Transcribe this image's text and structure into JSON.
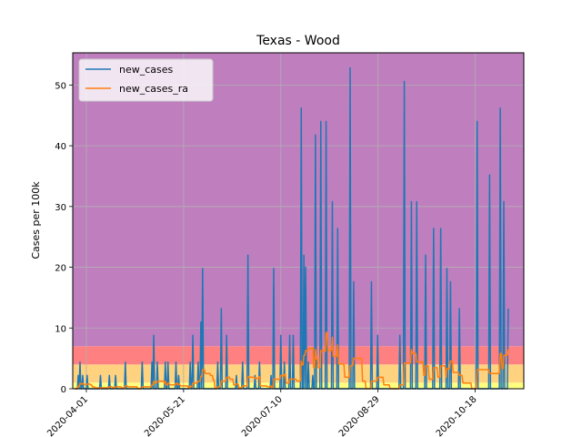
{
  "chart_data": {
    "type": "line",
    "title": "Texas - Wood",
    "xlabel": "",
    "ylabel": "Cases per 100k",
    "x_start": "2020-03-26",
    "x_end": "2020-11-04",
    "xlim": [
      "2020-03-25",
      "2020-11-12"
    ],
    "ylim": [
      0,
      55.3
    ],
    "x_ticks": [
      "2020-04-01",
      "2020-05-21",
      "2020-07-10",
      "2020-08-29",
      "2020-10-18"
    ],
    "y_ticks": [
      0,
      10,
      20,
      30,
      40,
      50
    ],
    "grid": true,
    "legend_position": "top-left",
    "bands": [
      {
        "from": 0,
        "to": 1,
        "color": "#ffff7f"
      },
      {
        "from": 1,
        "to": 4,
        "color": "#ffd280"
      },
      {
        "from": 4,
        "to": 7,
        "color": "#ff8080"
      },
      {
        "from": 7,
        "to": 55.3,
        "color": "#bf7fbf"
      }
    ],
    "series": [
      {
        "name": "new_cases",
        "color": "#1f77b4",
        "values": [
          0,
          0,
          0,
          0,
          2.2,
          0,
          4.4,
          0,
          0,
          2.2,
          0,
          0,
          0,
          0,
          2.2,
          0,
          0,
          0,
          0,
          0,
          0,
          0,
          0,
          0,
          0,
          0,
          0,
          0,
          0,
          2.2,
          0,
          0,
          0,
          0,
          0,
          0,
          0,
          0,
          0,
          2.2,
          0,
          0,
          0,
          0,
          0,
          0,
          2.2,
          0,
          0,
          0,
          0,
          0,
          0,
          0,
          0,
          0,
          0,
          4.4,
          0,
          0,
          0,
          0,
          0,
          0,
          0,
          0,
          0,
          0,
          0,
          0,
          0,
          0,
          0,
          0,
          0,
          0,
          4.4,
          0,
          0,
          0,
          0,
          0,
          0,
          0,
          0,
          0,
          0,
          4.4,
          0,
          8.8,
          0,
          0,
          0,
          4.4,
          0,
          0,
          0,
          0,
          0,
          0,
          0,
          0,
          4.4,
          0,
          0,
          4.4,
          0,
          0,
          0,
          0,
          0,
          0,
          0,
          0,
          4.4,
          0,
          0,
          2.2,
          0,
          0,
          0,
          0,
          0,
          0,
          0,
          0,
          0,
          0,
          0,
          0,
          4.4,
          0,
          0,
          8.8,
          0,
          0,
          0,
          0,
          0,
          4.4,
          0,
          0,
          11,
          0,
          19.8,
          0,
          0,
          0,
          0,
          0,
          0,
          0,
          0,
          0,
          0,
          0,
          0,
          0,
          0,
          0,
          0,
          4.4,
          0,
          0,
          0,
          13.2,
          0,
          0,
          0,
          0,
          0,
          8.8,
          0,
          0,
          0,
          0,
          0,
          0,
          0,
          0,
          0,
          0,
          2.2,
          0,
          0,
          0,
          0,
          0,
          0,
          4.4,
          0,
          0,
          0,
          0,
          0,
          22,
          0,
          0,
          0,
          0,
          0,
          0,
          0,
          2.2,
          0,
          0,
          0,
          0,
          4.4,
          0,
          0,
          0,
          0,
          0,
          0,
          0,
          0,
          0,
          0,
          0,
          0,
          2.2,
          0,
          0,
          19.8,
          0,
          0,
          0,
          0,
          0,
          0,
          0,
          8.8,
          0,
          0,
          0,
          4.4,
          0,
          0,
          0,
          0,
          0,
          8.8,
          0,
          0,
          0,
          8.8,
          0,
          0,
          0,
          0,
          0,
          0,
          0,
          0,
          46.2,
          0,
          0,
          22,
          0,
          20,
          0,
          0,
          4.4,
          0,
          0,
          0,
          0,
          2.2,
          0,
          0,
          41.8,
          0,
          0,
          0,
          0,
          0,
          44,
          0,
          0,
          0,
          0,
          0,
          44,
          0,
          0,
          0,
          0,
          0,
          0,
          30.8,
          0,
          0,
          0,
          0,
          0,
          26.4,
          0,
          0,
          0,
          0,
          0,
          0,
          0,
          0,
          0,
          0,
          0,
          0,
          0,
          52.8,
          0,
          0,
          0,
          17.6,
          0,
          0,
          0,
          0,
          0,
          0,
          0,
          0,
          0,
          0,
          0,
          0,
          0,
          0,
          0,
          0,
          0,
          0,
          0,
          17.6,
          0,
          0,
          0,
          0,
          0,
          0,
          8.8,
          0,
          0,
          0,
          0,
          0,
          0,
          0,
          0,
          0,
          0,
          0,
          0,
          0,
          0,
          0,
          0,
          0,
          0,
          0,
          0,
          0,
          0,
          0,
          0,
          8.8,
          0,
          0,
          0,
          0,
          50.6,
          0,
          0,
          0,
          0,
          0,
          0,
          0,
          30.8,
          0,
          0,
          0,
          0,
          0,
          30.8,
          0,
          0,
          0,
          0,
          0,
          0,
          0,
          0,
          0,
          22,
          0,
          0,
          0,
          0,
          0,
          0,
          0,
          0,
          26.4,
          0,
          0,
          0,
          0,
          0,
          0,
          0,
          26.4,
          0,
          0,
          0,
          0,
          0,
          0,
          19.8,
          0,
          0,
          0,
          17.6,
          0,
          0,
          0,
          0,
          0,
          0,
          0,
          0,
          0,
          13.2,
          0,
          0,
          0,
          0,
          0,
          0,
          0,
          0,
          0,
          0,
          0,
          0,
          0,
          0,
          0,
          0,
          0,
          0,
          0,
          44,
          0,
          0,
          0,
          0,
          0,
          0,
          0,
          0,
          0,
          0,
          0,
          0,
          0,
          35.2,
          0,
          0,
          0,
          0,
          0,
          0,
          0,
          0,
          0,
          0,
          0,
          46.2,
          0,
          0,
          0,
          30.8,
          0,
          0,
          0,
          0,
          13.2
        ]
      },
      {
        "name": "new_cases_ra",
        "color": "#ff7f0e",
        "values": []
      }
    ]
  }
}
